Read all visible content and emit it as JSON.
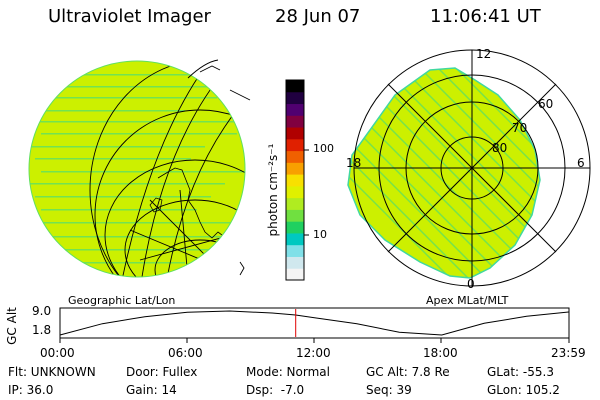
{
  "header": {
    "instrument": "Ultraviolet Imager",
    "date": "28 Jun 07",
    "time": "11:06:41 UT"
  },
  "colors": {
    "image_fill": "#ccf000",
    "image_stripe": "#60e060",
    "grid_line": "#000000",
    "time_marker": "#e00000"
  },
  "geo_panel": {
    "label": "Geographic Lat/Lon"
  },
  "polar_panel": {
    "label": "Apex MLat/MLT",
    "mlt_labels": [
      "12",
      "18",
      "6",
      "0"
    ],
    "mlat_labels": [
      "60",
      "70",
      "80"
    ]
  },
  "colorbar": {
    "unit_label": "photon cm⁻²s⁻¹",
    "tick_labels": [
      "100",
      "10"
    ],
    "colors_bottom_to_top": [
      "#f4f4f4",
      "#d0e8ee",
      "#80e0e8",
      "#00c8c0",
      "#20d060",
      "#70e040",
      "#b0ec20",
      "#e0f000",
      "#f8e000",
      "#f8a000",
      "#f06000",
      "#e02000",
      "#b00000",
      "#800040",
      "#500070",
      "#200040",
      "#000000"
    ]
  },
  "timeline": {
    "y_axis_label": "GC Alt",
    "y_ticks": [
      "9.0",
      "1.8"
    ],
    "x_ticks": [
      "00:00",
      "06:00",
      "12:00",
      "18:00",
      "23:59"
    ],
    "current_time": "11:06:41",
    "altitude_trace": {
      "type": "line",
      "x_hours": [
        0,
        2,
        4,
        6,
        8,
        10,
        11.11,
        12,
        14,
        16,
        18,
        20,
        22,
        23.98
      ],
      "gc_alt_re": [
        1.8,
        5.2,
        7.3,
        8.6,
        9.0,
        8.4,
        7.8,
        7.0,
        5.2,
        2.6,
        1.8,
        5.3,
        7.4,
        8.7
      ],
      "ylim": [
        1.8,
        9.0
      ]
    }
  },
  "info": {
    "filter": "Flt: UNKNOWN",
    "door": "Door: Fullex",
    "mode": "Mode: Normal",
    "gc_alt": "GC Alt: 7.8 Re",
    "glat": "GLat: -55.3",
    "ip": "IP: 36.0",
    "gain": "Gain: 14",
    "dsp": "Dsp:  -7.0",
    "seq": "Seq: 39",
    "glon": "GLon: 105.2"
  }
}
